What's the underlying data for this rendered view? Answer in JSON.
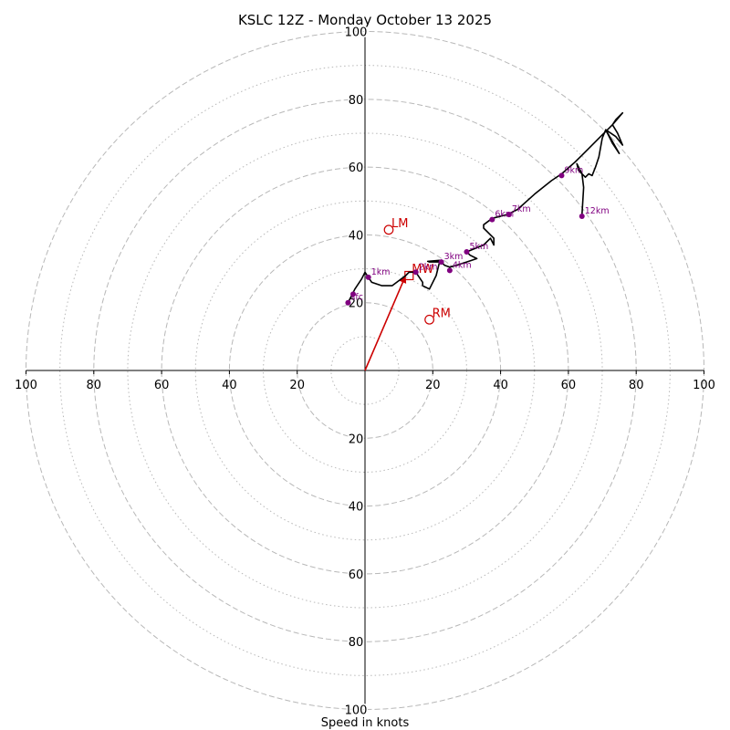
{
  "chart_data": {
    "type": "hodograph",
    "title": "KSLC 12Z - Monday October 13 2025",
    "xlabel": "Speed in knots",
    "xlim": [
      -100,
      100
    ],
    "ylim": [
      -100,
      100
    ],
    "rings_major": [
      20,
      40,
      60,
      80,
      100
    ],
    "rings_minor": [
      10,
      30,
      50,
      70,
      90
    ],
    "x_ticks": [
      {
        "value": -100,
        "label": "100"
      },
      {
        "value": -80,
        "label": "80"
      },
      {
        "value": -60,
        "label": "60"
      },
      {
        "value": -40,
        "label": "40"
      },
      {
        "value": -20,
        "label": "20"
      },
      {
        "value": 20,
        "label": "20"
      },
      {
        "value": 40,
        "label": "40"
      },
      {
        "value": 60,
        "label": "60"
      },
      {
        "value": 80,
        "label": "80"
      },
      {
        "value": 100,
        "label": "100"
      }
    ],
    "y_ticks": [
      {
        "value": 100,
        "label": "100"
      },
      {
        "value": 80,
        "label": "80"
      },
      {
        "value": 60,
        "label": "60"
      },
      {
        "value": 40,
        "label": "40"
      },
      {
        "value": 20,
        "label": "20"
      },
      {
        "value": -20,
        "label": "20"
      },
      {
        "value": -40,
        "label": "40"
      },
      {
        "value": -60,
        "label": "60"
      },
      {
        "value": -80,
        "label": "80"
      },
      {
        "value": -100,
        "label": "100"
      }
    ],
    "hodograph_trace": [
      [
        -5,
        20
      ],
      [
        -3,
        24
      ],
      [
        -1,
        27
      ],
      [
        0,
        29
      ],
      [
        2,
        26
      ],
      [
        5,
        25
      ],
      [
        8,
        25
      ],
      [
        12,
        28
      ],
      [
        13,
        29
      ],
      [
        15,
        29
      ],
      [
        17,
        26
      ],
      [
        17,
        25
      ],
      [
        19,
        24
      ],
      [
        21,
        28
      ],
      [
        22,
        32
      ],
      [
        19,
        32
      ],
      [
        18.5,
        32.2
      ],
      [
        22,
        32.5
      ],
      [
        23.5,
        31
      ],
      [
        25,
        30.5
      ],
      [
        27,
        31
      ],
      [
        30,
        32
      ],
      [
        33,
        33
      ],
      [
        31,
        34
      ],
      [
        30,
        35
      ],
      [
        35,
        37
      ],
      [
        37,
        39
      ],
      [
        38,
        37
      ],
      [
        38,
        39
      ],
      [
        37,
        40
      ],
      [
        35,
        42
      ],
      [
        35,
        43
      ],
      [
        37,
        44.5
      ],
      [
        38,
        45
      ],
      [
        42,
        46
      ],
      [
        45,
        47.5
      ],
      [
        50,
        52
      ],
      [
        55,
        56
      ],
      [
        58,
        58
      ],
      [
        62,
        61.5
      ],
      [
        66,
        65.5
      ],
      [
        70,
        69.5
      ],
      [
        72,
        71.5
      ],
      [
        73,
        72.5
      ],
      [
        74,
        74
      ],
      [
        76,
        76
      ],
      [
        73,
        72.5
      ],
      [
        74.5,
        70
      ],
      [
        76,
        66.5
      ],
      [
        74,
        69
      ],
      [
        71,
        71
      ],
      [
        73,
        67
      ],
      [
        75,
        64
      ],
      [
        71,
        71
      ],
      [
        70,
        68.5
      ],
      [
        69,
        63
      ],
      [
        68,
        60
      ],
      [
        67,
        57.5
      ],
      [
        66,
        58
      ],
      [
        65,
        57
      ],
      [
        63,
        59
      ],
      [
        62.5,
        61
      ],
      [
        64,
        58
      ],
      [
        64.5,
        54
      ],
      [
        64,
        46
      ]
    ],
    "height_markers": [
      {
        "label": "sfc",
        "u": -5,
        "v": 20
      },
      {
        "label": "",
        "u": -3.5,
        "v": 22.5
      },
      {
        "label": "1km",
        "u": 1,
        "v": 27.5
      },
      {
        "label": "2km",
        "u": 15,
        "v": 29
      },
      {
        "label": "3km",
        "u": 22.5,
        "v": 32
      },
      {
        "label": "4km",
        "u": 25,
        "v": 29.5
      },
      {
        "label": "5km",
        "u": 30,
        "v": 35
      },
      {
        "label": "6km",
        "u": 37.5,
        "v": 44.5
      },
      {
        "label": "7km",
        "u": 42.5,
        "v": 46
      },
      {
        "label": "9km",
        "u": 58,
        "v": 57.5
      },
      {
        "label": "12km",
        "u": 64,
        "v": 45.5
      }
    ],
    "storm_motion": {
      "lm": {
        "label": "LM",
        "u": 7,
        "v": 41.5
      },
      "mw": {
        "label": "MW",
        "u": 13,
        "v": 28
      },
      "rm": {
        "label": "RM",
        "u": 19,
        "v": 15
      }
    },
    "bunkers_vector": {
      "from": [
        0,
        0
      ],
      "to": [
        12,
        28
      ]
    }
  },
  "colors": {
    "trace": "#000000",
    "markers": "#800080",
    "storm": "#cc0000",
    "grid": "#b8b8b8"
  }
}
